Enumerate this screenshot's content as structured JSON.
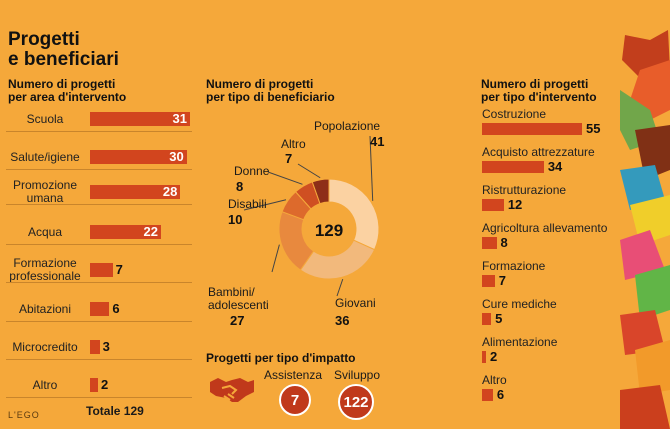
{
  "title_line1": "Progetti",
  "title_line2": "e beneficiari",
  "footer_brand": "L'EGO",
  "colors": {
    "background": "#f5a83a",
    "bar": "#d2451e",
    "dark_red": "#c0391b"
  },
  "area": {
    "heading_line1": "Numero di progetti",
    "heading_line2": "per area d'intervento",
    "total_label": "Totale 129"
  },
  "beneficiari": {
    "heading_line1": "Numero di progetti",
    "heading_line2": "per tipo di beneficiario",
    "center_value": "129",
    "labels": {
      "popolazione": "Popolazione",
      "giovani": "Giovani",
      "bambini_line1": "Bambini/",
      "bambini_line2": "adolescenti",
      "disabili": "Disabili",
      "donne": "Donne",
      "altro": "Altro"
    },
    "values": {
      "popolazione": "41",
      "giovani": "36",
      "bambini": "27",
      "disabili": "10",
      "donne": "8",
      "altro": "7"
    }
  },
  "impatto": {
    "heading": "Progetti per tipo d'impatto",
    "assistenza_label": "Assistenza",
    "sviluppo_label": "Sviluppo",
    "assistenza_value": "7",
    "sviluppo_value": "122",
    "icon": "handshake-icon"
  },
  "intervento": {
    "heading_line1": "Numero di progetti",
    "heading_line2": "per tipo d'intervento"
  },
  "chart_data": [
    {
      "type": "bar",
      "title": "Numero di progetti per area d'intervento",
      "categories": [
        "Scuola",
        "Salute/igiene",
        "Promozione umana",
        "Acqua",
        "Formazione professionale",
        "Abitazioni",
        "Microcredito",
        "Altro"
      ],
      "labels": [
        [
          "Scuola"
        ],
        [
          "Salute/igiene"
        ],
        [
          "Promozione",
          "umana"
        ],
        [
          "Acqua"
        ],
        [
          "Formazione",
          "professionale"
        ],
        [
          "Abitazioni"
        ],
        [
          "Microcredito"
        ],
        [
          "Altro"
        ]
      ],
      "values": [
        31,
        30,
        28,
        22,
        7,
        6,
        3,
        2
      ]
    },
    {
      "type": "pie",
      "title": "Numero di progetti per tipo di beneficiario",
      "categories": [
        "Popolazione",
        "Giovani",
        "Bambini/adolescenti",
        "Disabili",
        "Donne",
        "Altro"
      ],
      "values": [
        41,
        36,
        27,
        10,
        8,
        7
      ],
      "colors": [
        "#fbd2a2",
        "#f2b97c",
        "#e8893e",
        "#dd6a2c",
        "#cf4f22",
        "#8e2e18"
      ]
    },
    {
      "type": "bar",
      "title": "Numero di progetti per tipo d'intervento",
      "categories": [
        "Costruzione",
        "Acquisto attrezzature",
        "Ristrutturazione",
        "Agricoltura allevamento",
        "Formazione",
        "Cure mediche",
        "Alimentazione",
        "Altro"
      ],
      "values": [
        55,
        34,
        12,
        8,
        7,
        5,
        2,
        6
      ]
    }
  ]
}
